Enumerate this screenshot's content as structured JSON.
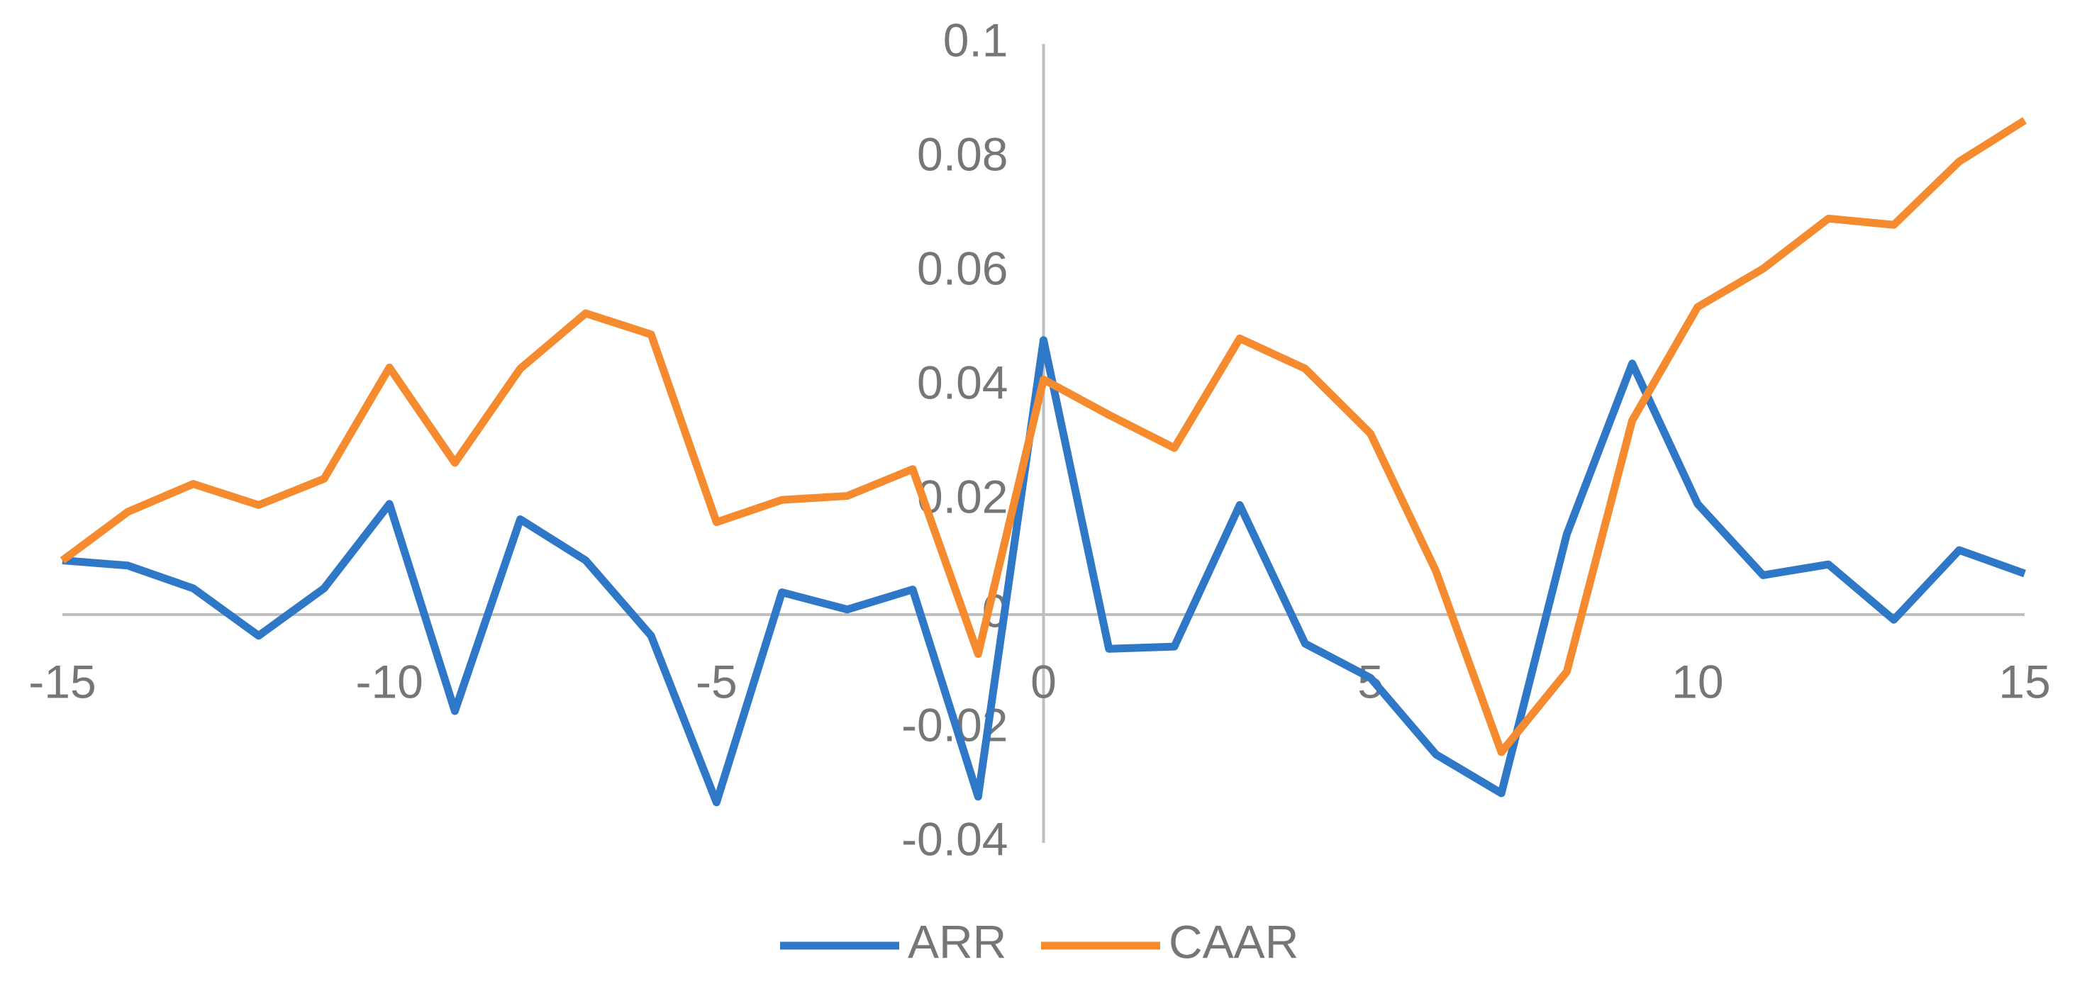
{
  "chart_data": {
    "type": "line",
    "x": [
      -15,
      -14,
      -13,
      -12,
      -11,
      -10,
      -9,
      -8,
      -7,
      -6,
      -5,
      -4,
      -3,
      -2,
      -1,
      0,
      1,
      2,
      3,
      4,
      5,
      6,
      7,
      8,
      9,
      10,
      11,
      12,
      13,
      14,
      15
    ],
    "series": [
      {
        "name": "ARR",
        "color": "#2f78c8",
        "values": [
          0.0095,
          0.0086,
          0.0046,
          -0.0037,
          0.0046,
          0.0194,
          -0.0169,
          0.0167,
          0.0095,
          -0.0037,
          -0.0329,
          0.0039,
          0.0009,
          0.0044,
          -0.0319,
          0.0481,
          -0.006,
          -0.0056,
          0.0192,
          -0.0051,
          -0.0111,
          -0.0245,
          -0.0313,
          0.0141,
          0.044,
          0.0194,
          0.0069,
          0.0088,
          -0.0009,
          0.0113,
          0.0072
        ]
      },
      {
        "name": "CAAR",
        "color": "#f58a2e",
        "values": [
          0.0095,
          0.018,
          0.0229,
          0.0192,
          0.0238,
          0.0433,
          0.0266,
          0.0431,
          0.0528,
          0.0491,
          0.0162,
          0.0201,
          0.0208,
          0.0255,
          -0.0069,
          0.0412,
          0.035,
          0.0292,
          0.0484,
          0.0431,
          0.0317,
          0.0076,
          -0.0241,
          -0.01,
          0.034,
          0.0539,
          0.0606,
          0.0694,
          0.0683,
          0.0794,
          0.0866
        ]
      }
    ],
    "xlim": [
      -15,
      15
    ],
    "xticks": [
      -15,
      -10,
      -5,
      0,
      5,
      10,
      15
    ],
    "ylim": [
      -0.04,
      0.1
    ],
    "yticks": [
      0.1,
      0.08,
      0.06,
      0.04,
      0.02,
      0,
      -0.02,
      -0.04
    ],
    "legend": "bottom"
  }
}
